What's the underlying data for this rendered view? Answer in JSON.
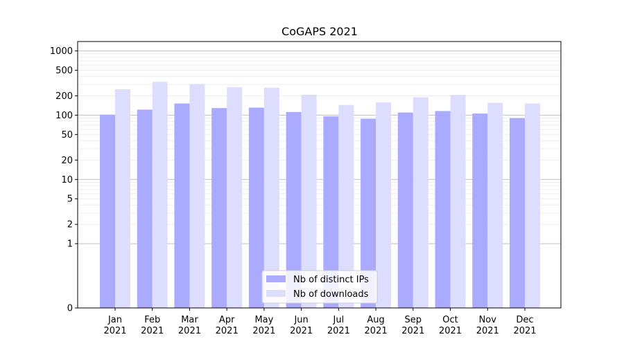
{
  "chart_data": {
    "type": "bar",
    "title": "CoGAPS 2021",
    "xlabel": "",
    "ylabel": "",
    "y_scale": "symlog",
    "ylim": [
      0,
      1400
    ],
    "y_ticks": [
      0,
      1,
      2,
      5,
      10,
      20,
      50,
      100,
      200,
      500,
      1000
    ],
    "grid": true,
    "legend_position": "bottom-center",
    "categories": [
      {
        "month": "Jan",
        "year": "2021"
      },
      {
        "month": "Feb",
        "year": "2021"
      },
      {
        "month": "Mar",
        "year": "2021"
      },
      {
        "month": "Apr",
        "year": "2021"
      },
      {
        "month": "May",
        "year": "2021"
      },
      {
        "month": "Jun",
        "year": "2021"
      },
      {
        "month": "Jul",
        "year": "2021"
      },
      {
        "month": "Aug",
        "year": "2021"
      },
      {
        "month": "Sep",
        "year": "2021"
      },
      {
        "month": "Oct",
        "year": "2021"
      },
      {
        "month": "Nov",
        "year": "2021"
      },
      {
        "month": "Dec",
        "year": "2021"
      }
    ],
    "series": [
      {
        "name": "Nb of distinct IPs",
        "color": "#aaaaff",
        "values": [
          102,
          122,
          152,
          129,
          131,
          112,
          96,
          88,
          110,
          116,
          106,
          90
        ]
      },
      {
        "name": "Nb of downloads",
        "color": "#ddddff",
        "values": [
          253,
          330,
          306,
          272,
          268,
          208,
          144,
          158,
          190,
          207,
          156,
          152
        ]
      }
    ]
  }
}
